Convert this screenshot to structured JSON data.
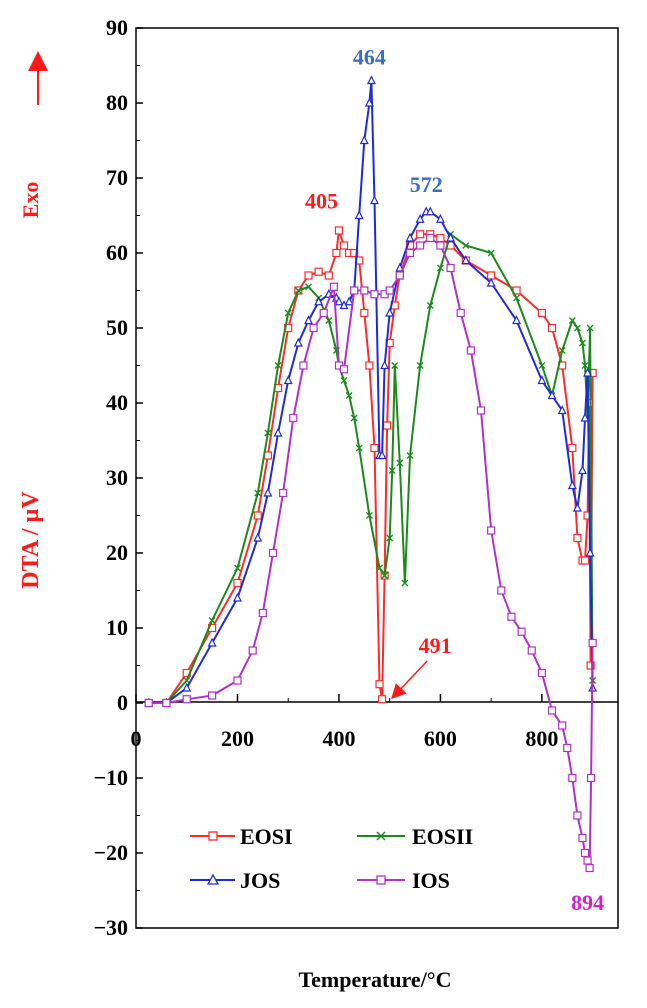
{
  "chart_data": {
    "type": "line",
    "title": "",
    "xlabel": "Temperature/°C",
    "ylabel": "DTA / µV",
    "exo_label": "Exo",
    "xlim": [
      0,
      950
    ],
    "ylim": [
      -30,
      90
    ],
    "xticks": [
      {
        "value": 0,
        "label": "0"
      },
      {
        "value": 200,
        "label": "200"
      },
      {
        "value": 400,
        "label": "400"
      },
      {
        "value": 600,
        "label": "600"
      },
      {
        "value": 800,
        "label": "800"
      }
    ],
    "yticks": [
      {
        "value": 90,
        "label": "90"
      },
      {
        "value": 80,
        "label": "80"
      },
      {
        "value": 70,
        "label": "70"
      },
      {
        "value": 60,
        "label": "60"
      },
      {
        "value": 50,
        "label": "50"
      },
      {
        "value": 40,
        "label": "40"
      },
      {
        "value": 30,
        "label": "30"
      },
      {
        "value": 20,
        "label": "20"
      },
      {
        "value": 10,
        "label": "10"
      },
      {
        "value": 0,
        "label": "0"
      },
      {
        "value": -10,
        "label": "−10"
      },
      {
        "value": -20,
        "label": "−20"
      },
      {
        "value": -30,
        "label": "−30"
      }
    ],
    "series": [
      {
        "name": "EOSI",
        "color": "#ff2a2a",
        "marker": "square",
        "x": [
          25,
          60,
          100,
          150,
          200,
          240,
          260,
          280,
          300,
          320,
          340,
          360,
          380,
          395,
          400,
          410,
          420,
          430,
          440,
          450,
          460,
          470,
          480,
          485,
          490,
          495,
          500,
          510,
          520,
          540,
          560,
          580,
          600,
          620,
          650,
          700,
          750,
          800,
          820,
          840,
          860,
          870,
          880,
          885,
          890,
          893,
          896,
          900
        ],
        "y": [
          0,
          0,
          4,
          10,
          16,
          25,
          33,
          42,
          50,
          55,
          57,
          57.5,
          57,
          60,
          63,
          61,
          60,
          60,
          59,
          52,
          45,
          34,
          2.5,
          0.5,
          17,
          37,
          48,
          53,
          57,
          61,
          62.5,
          62.5,
          62,
          61,
          59,
          57,
          55,
          52,
          50,
          45,
          34,
          22,
          19,
          19,
          25,
          40,
          5,
          44
        ]
      },
      {
        "name": "EOSII",
        "color": "#1a8a1a",
        "marker": "x",
        "x": [
          25,
          60,
          100,
          150,
          200,
          240,
          260,
          280,
          300,
          320,
          340,
          360,
          380,
          395,
          400,
          410,
          420,
          430,
          440,
          460,
          480,
          490,
          500,
          505,
          510,
          520,
          530,
          540,
          560,
          580,
          600,
          620,
          650,
          700,
          750,
          800,
          820,
          840,
          860,
          870,
          880,
          885,
          890,
          895,
          900
        ],
        "y": [
          0,
          0,
          3,
          11,
          18,
          28,
          36,
          45,
          52,
          55,
          55.5,
          54,
          51,
          47,
          45,
          43,
          41,
          38,
          34,
          25,
          18,
          17,
          22,
          31,
          45,
          32,
          16,
          33,
          45,
          53,
          58,
          62.5,
          61,
          60,
          54,
          45,
          41,
          47,
          51,
          50,
          48,
          45,
          38,
          50,
          3
        ]
      },
      {
        "name": "JOS",
        "color": "#1f2bd6",
        "marker": "triangle",
        "x": [
          25,
          60,
          100,
          150,
          200,
          240,
          260,
          280,
          300,
          320,
          340,
          360,
          380,
          395,
          400,
          410,
          420,
          430,
          440,
          450,
          460,
          464,
          470,
          480,
          485,
          490,
          500,
          520,
          540,
          560,
          572,
          580,
          600,
          620,
          650,
          700,
          750,
          800,
          820,
          840,
          860,
          870,
          880,
          885,
          890,
          895,
          900
        ],
        "y": [
          0,
          0,
          2,
          8,
          14,
          22,
          28,
          36,
          43,
          48,
          51,
          53.5,
          54.5,
          54,
          53.5,
          53,
          53.5,
          55,
          65,
          75,
          80,
          83,
          67,
          33,
          33,
          45,
          52,
          58,
          62,
          64.5,
          65.5,
          65.5,
          64.5,
          62,
          59,
          56,
          51,
          43,
          41,
          39,
          29,
          26,
          31,
          38,
          44,
          20,
          2
        ]
      },
      {
        "name": "IOS",
        "color": "#b030c8",
        "marker": "square-open",
        "x": [
          25,
          60,
          100,
          150,
          200,
          230,
          250,
          270,
          290,
          310,
          330,
          350,
          370,
          390,
          400,
          410,
          430,
          450,
          470,
          490,
          500,
          520,
          540,
          560,
          580,
          600,
          620,
          640,
          660,
          680,
          700,
          720,
          740,
          760,
          780,
          800,
          820,
          840,
          850,
          860,
          870,
          880,
          885,
          890,
          894,
          897,
          900
        ],
        "y": [
          0,
          0,
          0.5,
          1,
          3,
          7,
          12,
          20,
          28,
          38,
          45,
          50,
          52,
          55.5,
          45,
          44.5,
          55,
          55,
          54.5,
          54.5,
          55,
          57,
          60,
          61,
          62,
          61,
          58,
          52,
          47,
          39,
          23,
          15,
          11.5,
          9.5,
          7,
          4,
          -1,
          -3,
          -6,
          -10,
          -15,
          -18,
          -20,
          -21,
          -22,
          -10,
          8
        ]
      }
    ],
    "annotations": [
      {
        "label": "405",
        "x": 405,
        "y": 63,
        "color": "#ff1a1a"
      },
      {
        "label": "464",
        "x": 464,
        "y": 83,
        "color": "#3a6cc8"
      },
      {
        "label": "572",
        "x": 572,
        "y": 65.5,
        "color": "#3a6cc8"
      },
      {
        "label": "491",
        "x": 491,
        "y": 0,
        "color": "#ff1a1a",
        "arrow": true
      },
      {
        "label": "894",
        "x": 894,
        "y": -22,
        "color": "#cc22cc"
      }
    ],
    "legend": {
      "placement": "bottom",
      "columns": 2
    },
    "grid": false
  }
}
